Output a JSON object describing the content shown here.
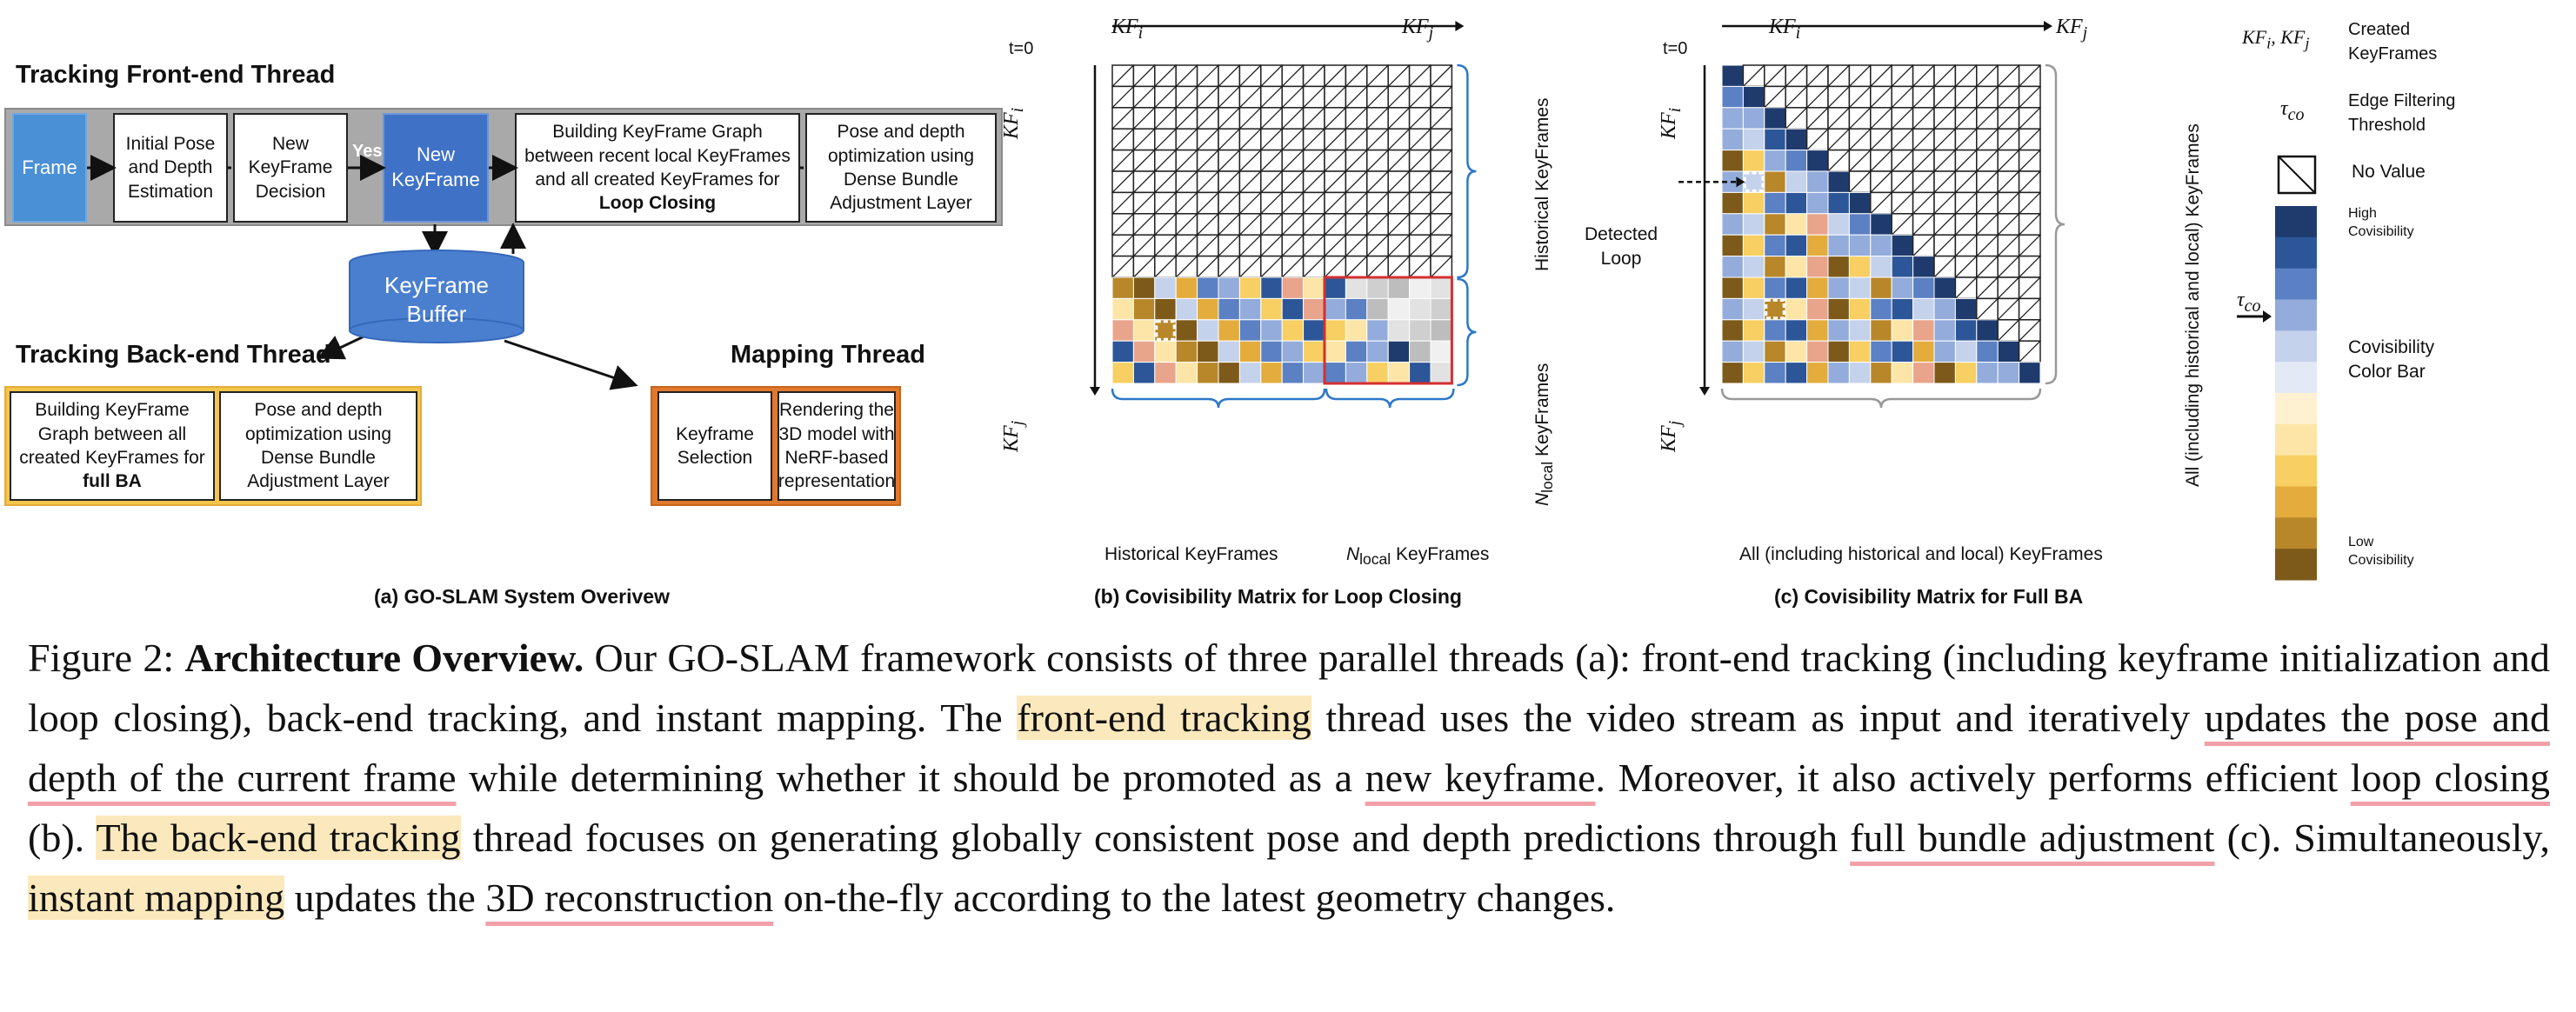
{
  "panel_a": {
    "front_end_title": "Tracking Front-end Thread",
    "front_end_boxes": {
      "frame": "Frame",
      "initial_pose": "Initial Pose and Depth Estimation",
      "new_kf_decision": "New KeyFrame Decision",
      "yes": "Yes",
      "new_keyframe": "New KeyFrame",
      "graph_pre": "Building KeyFrame Graph between recent local KeyFrames and all created KeyFrames for ",
      "graph_bold": "Loop Closing",
      "pose_opt": "Pose and depth optimization using Dense Bundle Adjustment Layer"
    },
    "buffer": "KeyFrame Buffer",
    "back_end_title": "Tracking Back-end Thread",
    "back_end_boxes": {
      "graph_pre": "Building KeyFrame Graph between all created KeyFrames for ",
      "graph_bold": "full BA",
      "pose_opt": "Pose and depth optimization using Dense Bundle Adjustment Layer"
    },
    "mapping_title": "Mapping Thread",
    "mapping_boxes": {
      "selection": "Keyframe Selection",
      "rendering": "Rendering the 3D model with NeRF-based representation"
    },
    "caption": "(a) GO-SLAM System Overivew"
  },
  "panel_b": {
    "t0": "t=0",
    "kfi": "KF",
    "kfi_sub": "i",
    "kfj": "KF",
    "kfj_sub": "j",
    "right_label_hist": "Historical KeyFrames",
    "right_label_local": "N",
    "right_label_local_sub": "local",
    "right_label_local_tail": " KeyFrames",
    "bottom_hist": "Historical KeyFrames",
    "bottom_local": "N",
    "bottom_local_sub": "local",
    "bottom_local_tail": " KeyFrames",
    "caption": "(b) Covisibility Matrix for Loop Closing"
  },
  "panel_c": {
    "t0": "t=0",
    "kfi": "KF",
    "kfi_sub": "i",
    "kfj": "KF",
    "kfj_sub": "j",
    "detected": "Detected",
    "loop": "Loop",
    "right_label": "All (including historical and local) KeyFrames",
    "bottom_label": "All (including historical and local) KeyFrames",
    "caption": "(c) Covisibility Matrix for Full BA"
  },
  "legend": {
    "kf_label": "KF",
    "kf_sub_i": "i",
    "kf_sub_j": "j",
    "created": "Created",
    "keyframes": "KeyFrames",
    "tau": "τ",
    "tau_sub": "co",
    "edge": "Edge Filtering",
    "threshold": "Threshold",
    "no_value": "No Value",
    "high": "High",
    "high2": "Covisibility",
    "colorbar1": "Covisibility",
    "colorbar2": "Color Bar",
    "low": "Low",
    "low2": "Covisibility",
    "colors": [
      "#1f3b6e",
      "#2c5698",
      "#5b80c3",
      "#93acdb",
      "#c5d2ec",
      "#e3e9f5",
      "#fdf1d2",
      "#fce5a6",
      "#f7cf62",
      "#e3ac3c",
      "#b8872a",
      "#7d5a1a"
    ]
  },
  "caption": {
    "prefix": "Figure 2: ",
    "bold": "Architecture Overview.",
    "s1": " Our GO-SLAM framework consists of three parallel threads (a): front-end tracking (including keyframe initialization and loop closing), back-end tracking, and instant mapping. The ",
    "hl1": "front-end tracking",
    "s2": " thread uses the video stream as input and iteratively ",
    "ul1": "updates the pose and depth of the current frame",
    "s3": " while determining whether it should be promoted as a ",
    "ul2": "new keyframe",
    "s4": ". Moreover, it also actively performs efficient ",
    "ul3": "loop closing",
    "s5": " (b). ",
    "hl2": "The back-end tracking",
    "s6": " thread focuses on generating globally consistent pose and depth predictions through ",
    "ul4": "full bundle adjustment",
    "s7": " (c). Simultaneously, ",
    "hl3": "instant mapping",
    "s8": " updates the ",
    "ul5": "3D reconstruction",
    "s9": " on-the-fly according to the latest geometry changes."
  }
}
